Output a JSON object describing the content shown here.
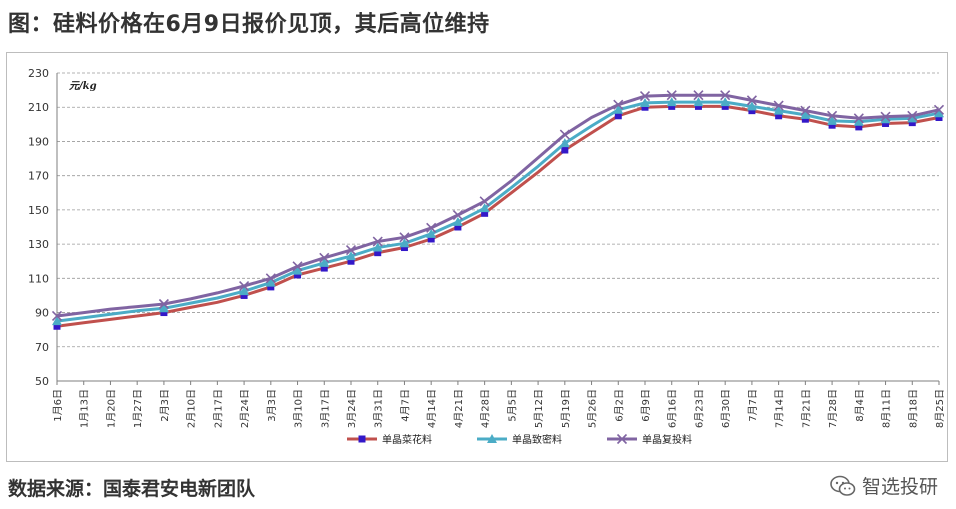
{
  "page": {
    "headline": "图：硅料价格在6月9日报价见顶，其后高位维持",
    "source": "数据来源：国泰君安电新团队",
    "watermark": "智选投研",
    "watermark_icon": "wechat-icon"
  },
  "chart_data": {
    "type": "line",
    "ylabel": "元/kg",
    "ylim": [
      50,
      230
    ],
    "yticks": [
      50,
      70,
      90,
      110,
      130,
      150,
      170,
      190,
      210,
      230
    ],
    "grid": "horizontal dashed",
    "legend_position": "bottom-center",
    "categories": [
      "1月6日",
      "1月13日",
      "1月20日",
      "1月27日",
      "2月3日",
      "2月10日",
      "2月17日",
      "2月24日",
      "3月3日",
      "3月10日",
      "3月17日",
      "3月24日",
      "3月31日",
      "4月7日",
      "4月14日",
      "4月21日",
      "4月28日",
      "5月5日",
      "5月12日",
      "5月19日",
      "5月26日",
      "6月2日",
      "6月9日",
      "6月16日",
      "6月23日",
      "6月30日",
      "7月7日",
      "7月14日",
      "7月21日",
      "7月28日",
      "8月4日",
      "8月11日",
      "8月18日",
      "8月25日"
    ],
    "series": [
      {
        "name": "单晶菜花料",
        "color": "#c0504d",
        "marker": "square",
        "marker_color": "#3318c8",
        "marker_indices": [
          0,
          4,
          7,
          8,
          9,
          10,
          11,
          12,
          13,
          14,
          15,
          16,
          19,
          21,
          22,
          23,
          24,
          25,
          26,
          27,
          28,
          29,
          30,
          31,
          32,
          33
        ],
        "values": [
          82,
          84,
          86,
          88,
          90,
          93,
          96,
          100,
          105,
          112,
          116,
          120,
          125,
          128,
          133,
          140,
          148,
          160,
          172,
          185,
          195,
          205,
          210,
          210.5,
          210.5,
          210.5,
          208,
          205,
          203,
          199.5,
          198.5,
          200.5,
          201,
          204
        ]
      },
      {
        "name": "单晶致密料",
        "color": "#4bacc6",
        "marker": "triangle",
        "marker_color": "#4bacc6",
        "marker_indices": [
          0,
          4,
          7,
          8,
          9,
          10,
          11,
          12,
          13,
          14,
          15,
          16,
          19,
          21,
          22,
          23,
          24,
          25,
          26,
          27,
          28,
          29,
          30,
          31,
          32,
          33
        ],
        "values": [
          85,
          87,
          89,
          91,
          92.5,
          95.5,
          98.5,
          102.5,
          107.5,
          114.5,
          119,
          123,
          128,
          130.5,
          136,
          143,
          151,
          163,
          175.5,
          189,
          199,
          208.5,
          212.5,
          213,
          213,
          213,
          210.5,
          208,
          205.5,
          202,
          201.5,
          203,
          203.5,
          206.5
        ]
      },
      {
        "name": "单晶复投料",
        "color": "#8064a2",
        "marker": "x",
        "marker_color": "#8064a2",
        "marker_indices": [
          0,
          4,
          7,
          8,
          9,
          10,
          11,
          12,
          13,
          14,
          15,
          16,
          19,
          21,
          22,
          23,
          24,
          25,
          26,
          27,
          28,
          29,
          30,
          31,
          32,
          33
        ],
        "values": [
          88,
          90,
          92,
          93.5,
          95,
          98,
          101.5,
          105.5,
          110,
          117,
          122,
          126.5,
          131.5,
          134,
          139.5,
          147,
          155,
          167,
          180.5,
          194,
          204,
          211.5,
          216.5,
          217,
          217,
          217,
          214,
          211,
          208,
          205,
          203.5,
          204.5,
          205,
          208.5
        ]
      }
    ]
  }
}
